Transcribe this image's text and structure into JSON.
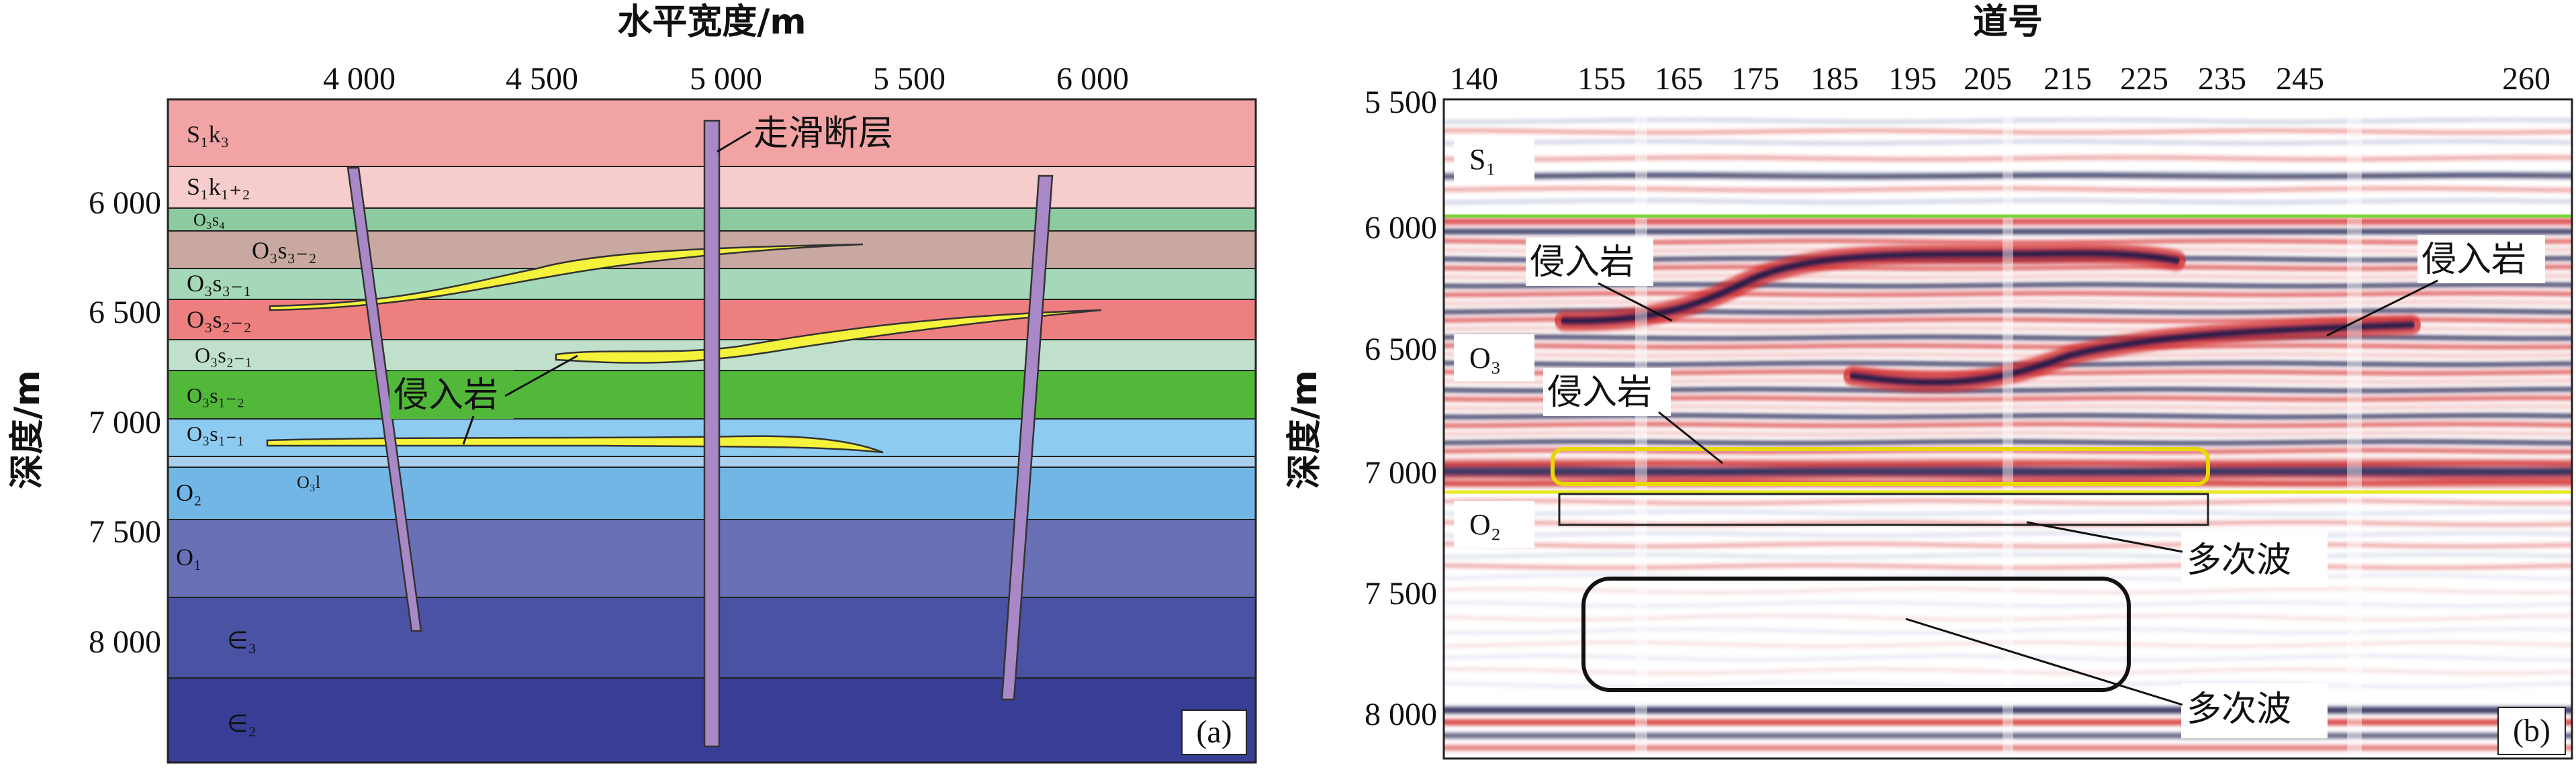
{
  "panel_a": {
    "title": "水平宽度/m",
    "y_title": "深度/m",
    "x_ticks": [
      "4 000",
      "4 500",
      "5 000",
      "5 500",
      "6 000"
    ],
    "y_ticks": [
      "6 000",
      "6 500",
      "7 000",
      "7 500",
      "8 000"
    ],
    "layers": [
      {
        "label": "S₁k₃",
        "color": "#f2a3a3"
      },
      {
        "label": "S₁k₁₊₂",
        "color": "#f7cccc"
      },
      {
        "label": "O₃s₄",
        "color": "#8ccaa0"
      },
      {
        "label": "O₃s₃₋₂",
        "color": "#c8a8a0"
      },
      {
        "label": "O₃s₃₋₁",
        "color": "#a4d8b8"
      },
      {
        "label": "O₃s₂₋₂",
        "color": "#ee7f7f"
      },
      {
        "label": "O₃s₂₋₁",
        "color": "#c0e0cc"
      },
      {
        "label": "O₃s₁₋₂",
        "color": "#52b83a"
      },
      {
        "label": "O₃s₁₋₁",
        "color": "#8ecbf0"
      },
      {
        "label": "O₃l",
        "color": "#aad0ee"
      },
      {
        "label": "O₂",
        "color": "#72b6e6"
      },
      {
        "label": "O₁",
        "color": "#6a70b6"
      },
      {
        "label": "∈₃",
        "color": "#4a52a4"
      },
      {
        "label": "∈₂",
        "color": "#383e96"
      }
    ],
    "fault_label": "走滑断层",
    "intrusion_label": "侵入岩",
    "panel_label": "(a)"
  },
  "panel_b": {
    "title": "道号",
    "y_title": "深度/m",
    "x_ticks": [
      "140",
      "155",
      "165",
      "175",
      "185",
      "195",
      "205",
      "215",
      "225",
      "235",
      "245",
      "260"
    ],
    "y_ticks": [
      "5 500",
      "6 000",
      "6 500",
      "7 000",
      "7 500",
      "8 000"
    ],
    "unit_labels": [
      "S₁",
      "O₃",
      "O₂"
    ],
    "intrusion_label_1": "侵入岩",
    "intrusion_label_2": "侵入岩",
    "intrusion_label_3": "侵入岩",
    "multiple_label_1": "多次波",
    "multiple_label_2": "多次波",
    "panel_label": "(b)",
    "colors": {
      "positive": "#d42a2a",
      "negative": "#1a1a4a",
      "horizon_top": "#7cd43a",
      "horizon_bottom": "#e8e820",
      "highlight": "#e8d800"
    }
  }
}
